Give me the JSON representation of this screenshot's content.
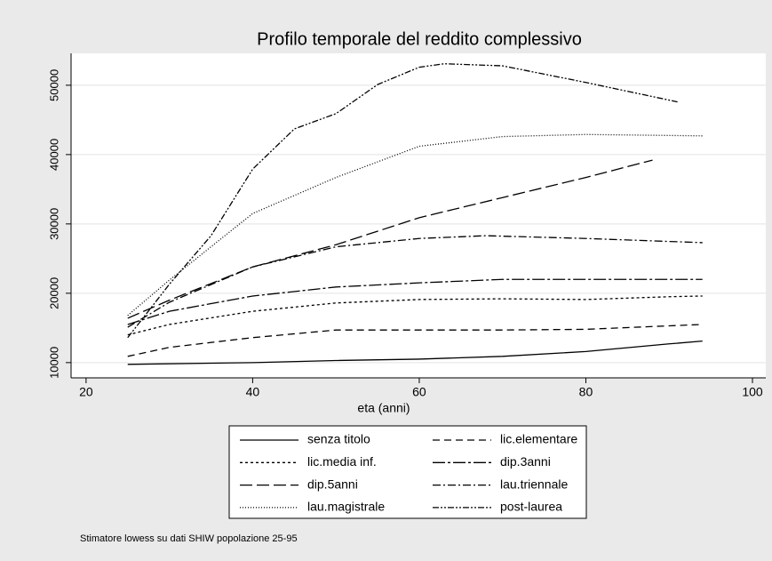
{
  "chart_data": {
    "type": "line",
    "title": "Profilo temporale del reddito complessivo",
    "x_label": "eta (anni)",
    "note": "Stimatore lowess su dati SHIW popolazione 25-95",
    "xlim": [
      18.2,
      101.6
    ],
    "ylim": [
      7800,
      54600
    ],
    "xticks": [
      20,
      40,
      60,
      80,
      100
    ],
    "yticks": [
      10000,
      20000,
      30000,
      40000,
      50000
    ],
    "grid": true,
    "series": [
      {
        "name": "senza titolo",
        "color": "#000000",
        "dash": "none",
        "x": [
          25,
          40,
          50,
          60,
          70,
          80,
          90,
          94
        ],
        "values": [
          9750,
          10000,
          10300,
          10500,
          10900,
          11600,
          12700,
          13100
        ]
      },
      {
        "name": "lic.elementare",
        "color": "#000000",
        "dash": "8 5",
        "x": [
          25,
          30,
          40,
          50,
          60,
          70,
          80,
          90,
          94
        ],
        "values": [
          10900,
          12200,
          13600,
          14700,
          14700,
          14700,
          14800,
          15300,
          15500
        ]
      },
      {
        "name": "lic.media inf.",
        "color": "#000000",
        "dash": "3 3",
        "x": [
          25,
          30,
          40,
          50,
          60,
          70,
          80,
          90,
          94
        ],
        "values": [
          14000,
          15500,
          17400,
          18600,
          19100,
          19200,
          19100,
          19500,
          19600
        ]
      },
      {
        "name": "dip.3anni",
        "color": "#000000",
        "dash": "14 3 3 3",
        "x": [
          25,
          30,
          40,
          50,
          60,
          70,
          80,
          94
        ],
        "values": [
          15500,
          17400,
          19600,
          20900,
          21500,
          22000,
          22000,
          22000
        ]
      },
      {
        "name": "dip.5anni",
        "color": "#000000",
        "dash": "14 5",
        "x": [
          25,
          30,
          40,
          50,
          60,
          70,
          80,
          88
        ],
        "values": [
          16400,
          19000,
          23800,
          27000,
          30900,
          33800,
          36700,
          39200
        ]
      },
      {
        "name": "lau.triennale",
        "color": "#000000",
        "dash": "9 3 2 3",
        "x": [
          25,
          30,
          40,
          50,
          60,
          68,
          80,
          94
        ],
        "values": [
          15100,
          18700,
          23800,
          26700,
          27900,
          28300,
          27900,
          27300
        ]
      },
      {
        "name": "lau.magistrale",
        "color": "#000000",
        "dash": "1 2",
        "x": [
          25,
          30,
          40,
          50,
          60,
          70,
          80,
          94
        ],
        "values": [
          16800,
          21900,
          31500,
          36700,
          41200,
          42600,
          42900,
          42700
        ]
      },
      {
        "name": "post-laurea",
        "color": "#000000",
        "dash": "7 2 2 2 2 2",
        "x": [
          25,
          30,
          35,
          40,
          45,
          50,
          55,
          60,
          63,
          70,
          80,
          91
        ],
        "values": [
          13600,
          21300,
          28300,
          37900,
          43700,
          45900,
          50100,
          52600,
          53100,
          52800,
          50400,
          47600
        ]
      }
    ]
  }
}
